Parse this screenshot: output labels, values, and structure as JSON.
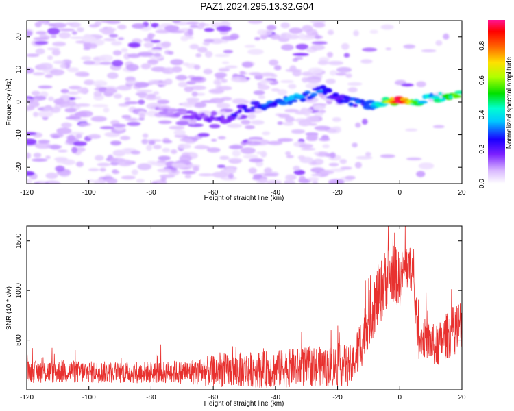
{
  "title": "PAZ1.2024.295.13.32.G04",
  "chart_data": [
    {
      "type": "heatmap",
      "xlabel": "Height of straight line (km)",
      "ylabel": "Frequency (Hz)",
      "xlim": [
        -120,
        20
      ],
      "ylim": [
        -25,
        25
      ],
      "x_ticks": [
        "-120",
        "-100",
        "-80",
        "-60",
        "-40",
        "-20",
        "0",
        "20"
      ],
      "y_ticks": [
        "-20",
        "-10",
        "0",
        "10",
        "20"
      ],
      "colorbar": {
        "label": "Normalized spectral amplitude",
        "range": [
          0.0,
          0.95
        ],
        "ticks": [
          "0.0",
          "0.2",
          "0.4",
          "0.6",
          "0.8"
        ]
      },
      "ridge": {
        "x": [
          -75,
          -65,
          -55,
          -50,
          -45,
          -40,
          -35,
          -30,
          -25,
          -20,
          -15,
          -10,
          -5,
          0,
          5,
          10,
          15,
          20
        ],
        "frequency": [
          -3,
          -4,
          -5,
          -2,
          -1,
          -1,
          1,
          2,
          4,
          1,
          0,
          -1,
          0,
          0,
          0,
          1,
          2,
          2
        ],
        "amplitude": [
          0.12,
          0.18,
          0.22,
          0.28,
          0.3,
          0.33,
          0.4,
          0.35,
          0.33,
          0.25,
          0.3,
          0.35,
          0.55,
          0.95,
          0.55,
          0.45,
          0.55,
          0.65
        ]
      }
    },
    {
      "type": "line",
      "xlabel": "Height of straight line (km)",
      "ylabel": "SNR (10 * v/v)",
      "xlim": [
        -120,
        20
      ],
      "ylim": [
        0,
        1650
      ],
      "x_ticks": [
        "-120",
        "-100",
        "-80",
        "-60",
        "-40",
        "-20",
        "0",
        "20"
      ],
      "y_ticks": [
        "500",
        "1000",
        "1500"
      ],
      "color": "#e8312f",
      "profile": {
        "x": [
          -120,
          -110,
          -100,
          -90,
          -80,
          -70,
          -60,
          -50,
          -40,
          -30,
          -20,
          -15,
          -12,
          -10,
          -8,
          -6,
          -4,
          -2,
          0,
          2,
          4,
          6,
          8,
          10,
          12,
          14,
          16,
          18,
          20
        ],
        "mean": [
          180,
          185,
          180,
          175,
          175,
          180,
          190,
          200,
          210,
          230,
          240,
          250,
          520,
          700,
          880,
          1000,
          1150,
          1180,
          1100,
          1250,
          1200,
          500,
          520,
          480,
          430,
          520,
          560,
          620,
          680
        ],
        "spread": [
          110,
          120,
          110,
          110,
          110,
          120,
          160,
          180,
          190,
          200,
          210,
          220,
          280,
          280,
          320,
          320,
          320,
          300,
          280,
          240,
          220,
          200,
          200,
          200,
          220,
          220,
          240,
          260,
          260
        ]
      }
    }
  ]
}
